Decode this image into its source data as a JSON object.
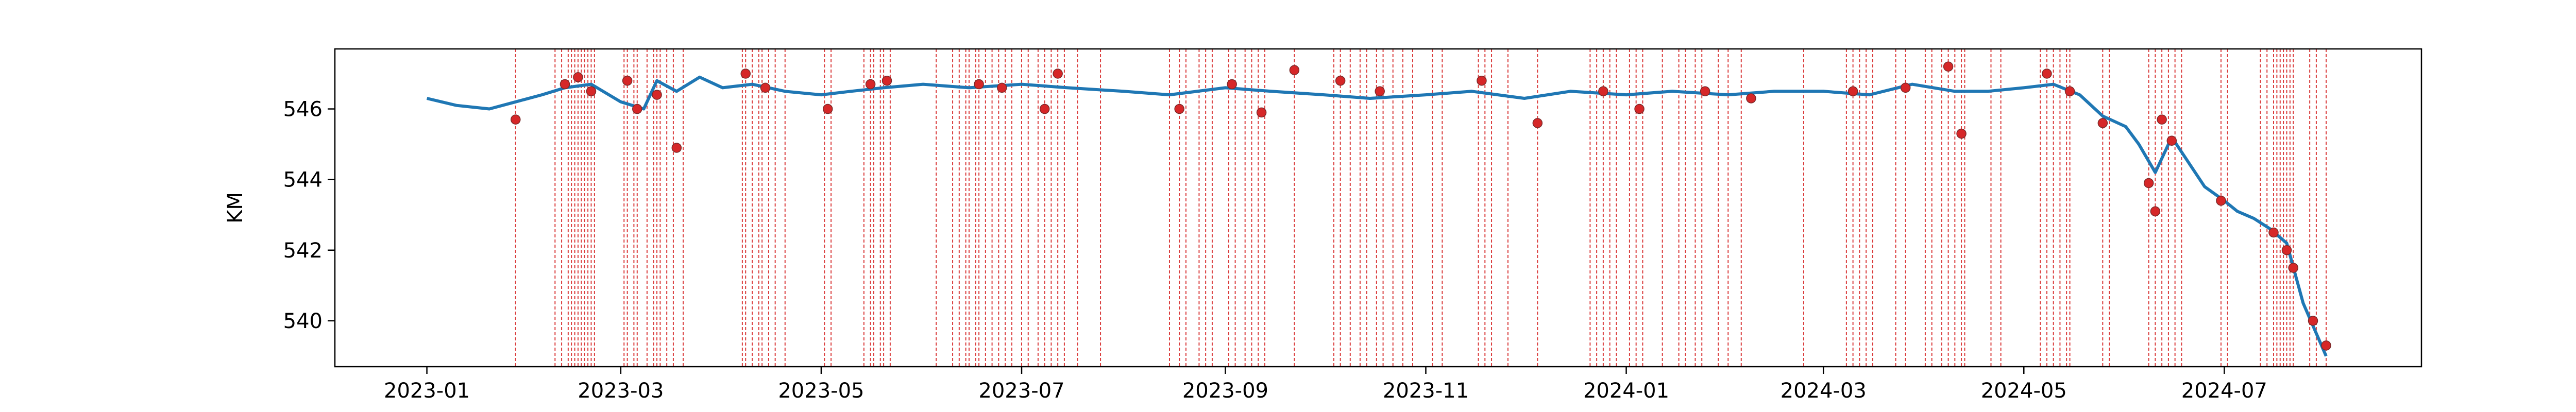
{
  "chart_data": {
    "type": "line",
    "title": "",
    "xlabel": "",
    "ylabel": "KM",
    "grid": false,
    "legend": false,
    "x_tick_labels": [
      "2023-01",
      "2023-03",
      "2023-05",
      "2023-07",
      "2023-09",
      "2023-11",
      "2024-01",
      "2024-03",
      "2024-05",
      "2024-07"
    ],
    "x_ticks": [
      "2023-01-01",
      "2023-03-01",
      "2023-05-01",
      "2023-07-01",
      "2023-09-01",
      "2023-11-01",
      "2024-01-01",
      "2024-03-01",
      "2024-05-01",
      "2024-07-01"
    ],
    "y_ticks": [
      540,
      542,
      544,
      546
    ],
    "xlim": [
      "2022-12-04",
      "2024-08-30"
    ],
    "ylim": [
      538.7,
      547.7
    ],
    "colors": {
      "line": "#1f77b4",
      "markers": "#d62728",
      "event_lines": "#d62728"
    },
    "series": [
      {
        "kind": "line",
        "x": [
          "2023-01-01",
          "2023-01-10",
          "2023-01-20",
          "2023-01-28",
          "2023-02-05",
          "2023-02-12",
          "2023-02-20",
          "2023-03-01",
          "2023-03-08",
          "2023-03-12",
          "2023-03-18",
          "2023-03-25",
          "2023-04-01",
          "2023-04-10",
          "2023-04-20",
          "2023-05-01",
          "2023-05-10",
          "2023-05-20",
          "2023-06-01",
          "2023-06-15",
          "2023-07-01",
          "2023-07-15",
          "2023-08-01",
          "2023-08-15",
          "2023-09-01",
          "2023-09-15",
          "2023-10-01",
          "2023-10-15",
          "2023-11-01",
          "2023-11-15",
          "2023-12-01",
          "2023-12-15",
          "2024-01-01",
          "2024-01-15",
          "2024-02-01",
          "2024-02-15",
          "2024-03-01",
          "2024-03-15",
          "2024-03-28",
          "2024-04-10",
          "2024-04-20",
          "2024-05-01",
          "2024-05-10",
          "2024-05-18",
          "2024-05-25",
          "2024-06-01",
          "2024-06-05",
          "2024-06-10",
          "2024-06-15",
          "2024-06-20",
          "2024-06-25",
          "2024-07-01",
          "2024-07-05",
          "2024-07-10",
          "2024-07-15",
          "2024-07-20",
          "2024-07-25",
          "2024-08-01"
        ],
        "y": [
          546.3,
          546.1,
          546.0,
          546.2,
          546.4,
          546.6,
          546.7,
          546.2,
          546.0,
          546.8,
          546.5,
          546.9,
          546.6,
          546.7,
          546.5,
          546.4,
          546.5,
          546.6,
          546.7,
          546.6,
          546.7,
          546.6,
          546.5,
          546.4,
          546.6,
          546.5,
          546.4,
          546.3,
          546.4,
          546.5,
          546.3,
          546.5,
          546.4,
          546.5,
          546.4,
          546.5,
          546.5,
          546.4,
          546.7,
          546.5,
          546.5,
          546.6,
          546.7,
          546.4,
          545.8,
          545.5,
          545.0,
          544.2,
          545.2,
          544.5,
          543.8,
          543.4,
          543.1,
          542.9,
          542.6,
          542.2,
          540.5,
          539.0
        ]
      },
      {
        "kind": "markers",
        "x": [
          "2023-01-28",
          "2023-02-12",
          "2023-02-16",
          "2023-02-20",
          "2023-03-03",
          "2023-03-06",
          "2023-03-12",
          "2023-03-18",
          "2023-04-08",
          "2023-04-14",
          "2023-05-03",
          "2023-05-16",
          "2023-05-21",
          "2023-06-18",
          "2023-06-25",
          "2023-07-08",
          "2023-07-12",
          "2023-08-18",
          "2023-09-03",
          "2023-09-12",
          "2023-09-22",
          "2023-10-06",
          "2023-10-18",
          "2023-11-18",
          "2023-12-05",
          "2023-12-25",
          "2024-01-05",
          "2024-01-25",
          "2024-02-08",
          "2024-03-10",
          "2024-03-26",
          "2024-04-08",
          "2024-04-12",
          "2024-05-08",
          "2024-05-15",
          "2024-05-25",
          "2024-06-08",
          "2024-06-10",
          "2024-06-12",
          "2024-06-15",
          "2024-06-30",
          "2024-07-16",
          "2024-07-20",
          "2024-07-22",
          "2024-07-28",
          "2024-08-01"
        ],
        "y": [
          545.7,
          546.7,
          546.9,
          546.5,
          546.8,
          546.0,
          546.4,
          544.9,
          547.0,
          546.6,
          546.0,
          546.7,
          546.8,
          546.7,
          546.6,
          546.0,
          547.0,
          546.0,
          546.7,
          545.9,
          547.1,
          546.8,
          546.5,
          546.8,
          545.6,
          546.5,
          546.0,
          546.5,
          546.3,
          546.5,
          546.6,
          547.2,
          545.3,
          547.0,
          546.5,
          545.6,
          543.9,
          543.1,
          545.7,
          545.1,
          543.4,
          542.5,
          542.0,
          541.5,
          540.0,
          539.3
        ]
      }
    ],
    "event_dates": [
      "2023-01-28",
      "2023-02-09",
      "2023-02-11",
      "2023-02-13",
      "2023-02-14",
      "2023-02-15",
      "2023-02-16",
      "2023-02-17",
      "2023-02-18",
      "2023-02-19",
      "2023-02-20",
      "2023-02-21",
      "2023-03-02",
      "2023-03-03",
      "2023-03-05",
      "2023-03-06",
      "2023-03-09",
      "2023-03-11",
      "2023-03-12",
      "2023-03-13",
      "2023-03-15",
      "2023-03-17",
      "2023-03-20",
      "2023-04-07",
      "2023-04-08",
      "2023-04-10",
      "2023-04-12",
      "2023-04-13",
      "2023-04-15",
      "2023-04-17",
      "2023-04-20",
      "2023-05-02",
      "2023-05-04",
      "2023-05-14",
      "2023-05-16",
      "2023-05-17",
      "2023-05-19",
      "2023-05-20",
      "2023-05-22",
      "2023-06-05",
      "2023-06-10",
      "2023-06-12",
      "2023-06-14",
      "2023-06-15",
      "2023-06-17",
      "2023-06-18",
      "2023-06-20",
      "2023-06-22",
      "2023-06-24",
      "2023-06-26",
      "2023-06-28",
      "2023-07-01",
      "2023-07-03",
      "2023-07-06",
      "2023-07-08",
      "2023-07-10",
      "2023-07-12",
      "2023-07-14",
      "2023-07-18",
      "2023-07-25",
      "2023-08-15",
      "2023-08-18",
      "2023-08-20",
      "2023-08-24",
      "2023-08-26",
      "2023-08-28",
      "2023-09-02",
      "2023-09-04",
      "2023-09-07",
      "2023-09-09",
      "2023-09-11",
      "2023-09-13",
      "2023-09-22",
      "2023-10-04",
      "2023-10-06",
      "2023-10-09",
      "2023-10-12",
      "2023-10-14",
      "2023-10-17",
      "2023-10-19",
      "2023-10-22",
      "2023-10-25",
      "2023-10-28",
      "2023-11-03",
      "2023-11-06",
      "2023-11-17",
      "2023-11-19",
      "2023-11-21",
      "2023-11-26",
      "2023-12-05",
      "2023-12-21",
      "2023-12-23",
      "2023-12-25",
      "2023-12-27",
      "2023-12-29",
      "2024-01-02",
      "2024-01-04",
      "2024-01-06",
      "2024-01-12",
      "2024-01-17",
      "2024-01-19",
      "2024-01-22",
      "2024-01-24",
      "2024-01-29",
      "2024-02-01",
      "2024-02-05",
      "2024-02-24",
      "2024-03-08",
      "2024-03-10",
      "2024-03-12",
      "2024-03-14",
      "2024-03-16",
      "2024-03-23",
      "2024-03-26",
      "2024-04-01",
      "2024-04-03",
      "2024-04-06",
      "2024-04-08",
      "2024-04-10",
      "2024-04-12",
      "2024-04-13",
      "2024-04-21",
      "2024-04-24",
      "2024-05-06",
      "2024-05-08",
      "2024-05-10",
      "2024-05-12",
      "2024-05-14",
      "2024-05-15",
      "2024-05-25",
      "2024-05-27",
      "2024-06-08",
      "2024-06-10",
      "2024-06-12",
      "2024-06-14",
      "2024-06-16",
      "2024-06-18",
      "2024-06-30",
      "2024-07-02",
      "2024-07-12",
      "2024-07-14",
      "2024-07-16",
      "2024-07-17",
      "2024-07-18",
      "2024-07-19",
      "2024-07-20",
      "2024-07-21",
      "2024-07-22",
      "2024-07-27",
      "2024-07-29",
      "2024-08-01"
    ]
  }
}
